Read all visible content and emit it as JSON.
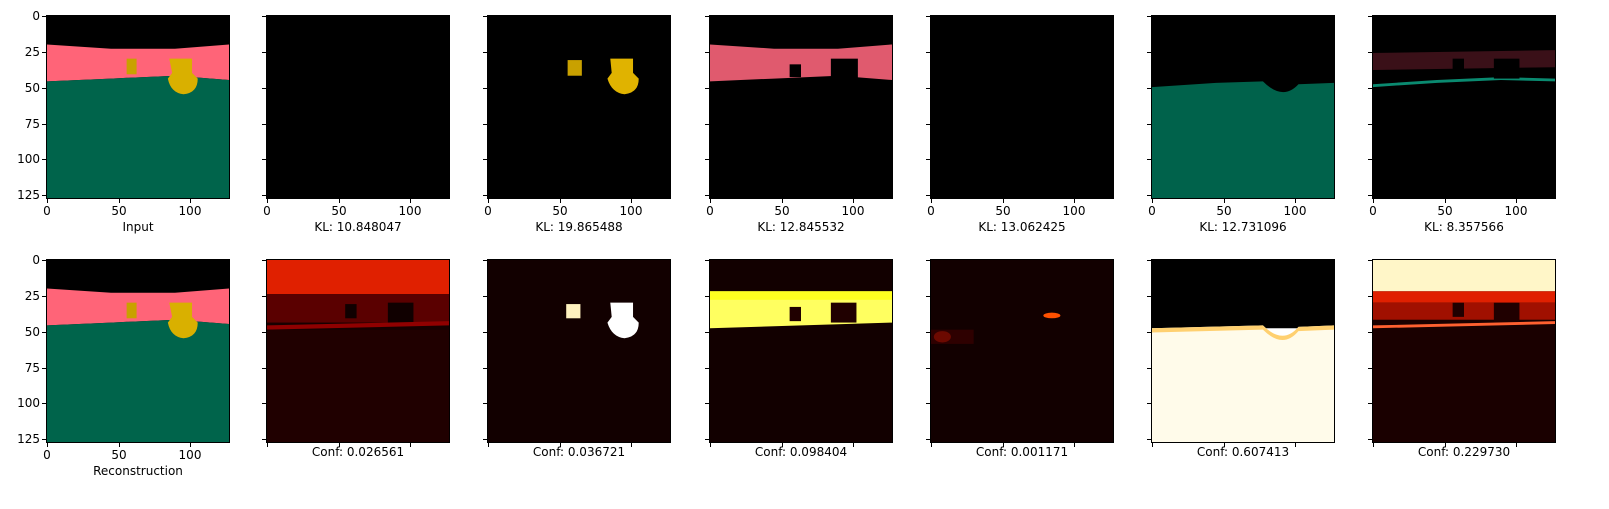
{
  "axis": {
    "y_ticks": [
      "0",
      "25",
      "50",
      "75",
      "100",
      "125"
    ],
    "x_ticks": [
      "0",
      "50",
      "100"
    ]
  },
  "top_row": [
    {
      "caption": "Input",
      "kind": "input"
    },
    {
      "caption": "KL: 10.848047",
      "kind": "black"
    },
    {
      "caption": "KL: 19.865488",
      "kind": "yellow_objects"
    },
    {
      "caption": "KL: 12.845532",
      "kind": "pink_band"
    },
    {
      "caption": "KL: 13.062425",
      "kind": "black"
    },
    {
      "caption": "KL: 12.731096",
      "kind": "green_floor"
    },
    {
      "caption": "KL: 8.357566",
      "kind": "dark_faint"
    }
  ],
  "bottom_row": [
    {
      "caption": "Reconstruction",
      "kind": "input"
    },
    {
      "caption": "Conf: 0.026561",
      "kind": "conf1"
    },
    {
      "caption": "Conf: 0.036721",
      "kind": "conf2"
    },
    {
      "caption": "Conf: 0.098404",
      "kind": "conf3"
    },
    {
      "caption": "Conf: 0.001171",
      "kind": "conf4"
    },
    {
      "caption": "Conf: 0.607413",
      "kind": "conf5"
    },
    {
      "caption": "Conf: 0.229730",
      "kind": "conf6"
    }
  ],
  "colors": {
    "sky": "#000000",
    "wall": "#ff6478",
    "floor": "#00644b",
    "object": "#f0c000"
  }
}
